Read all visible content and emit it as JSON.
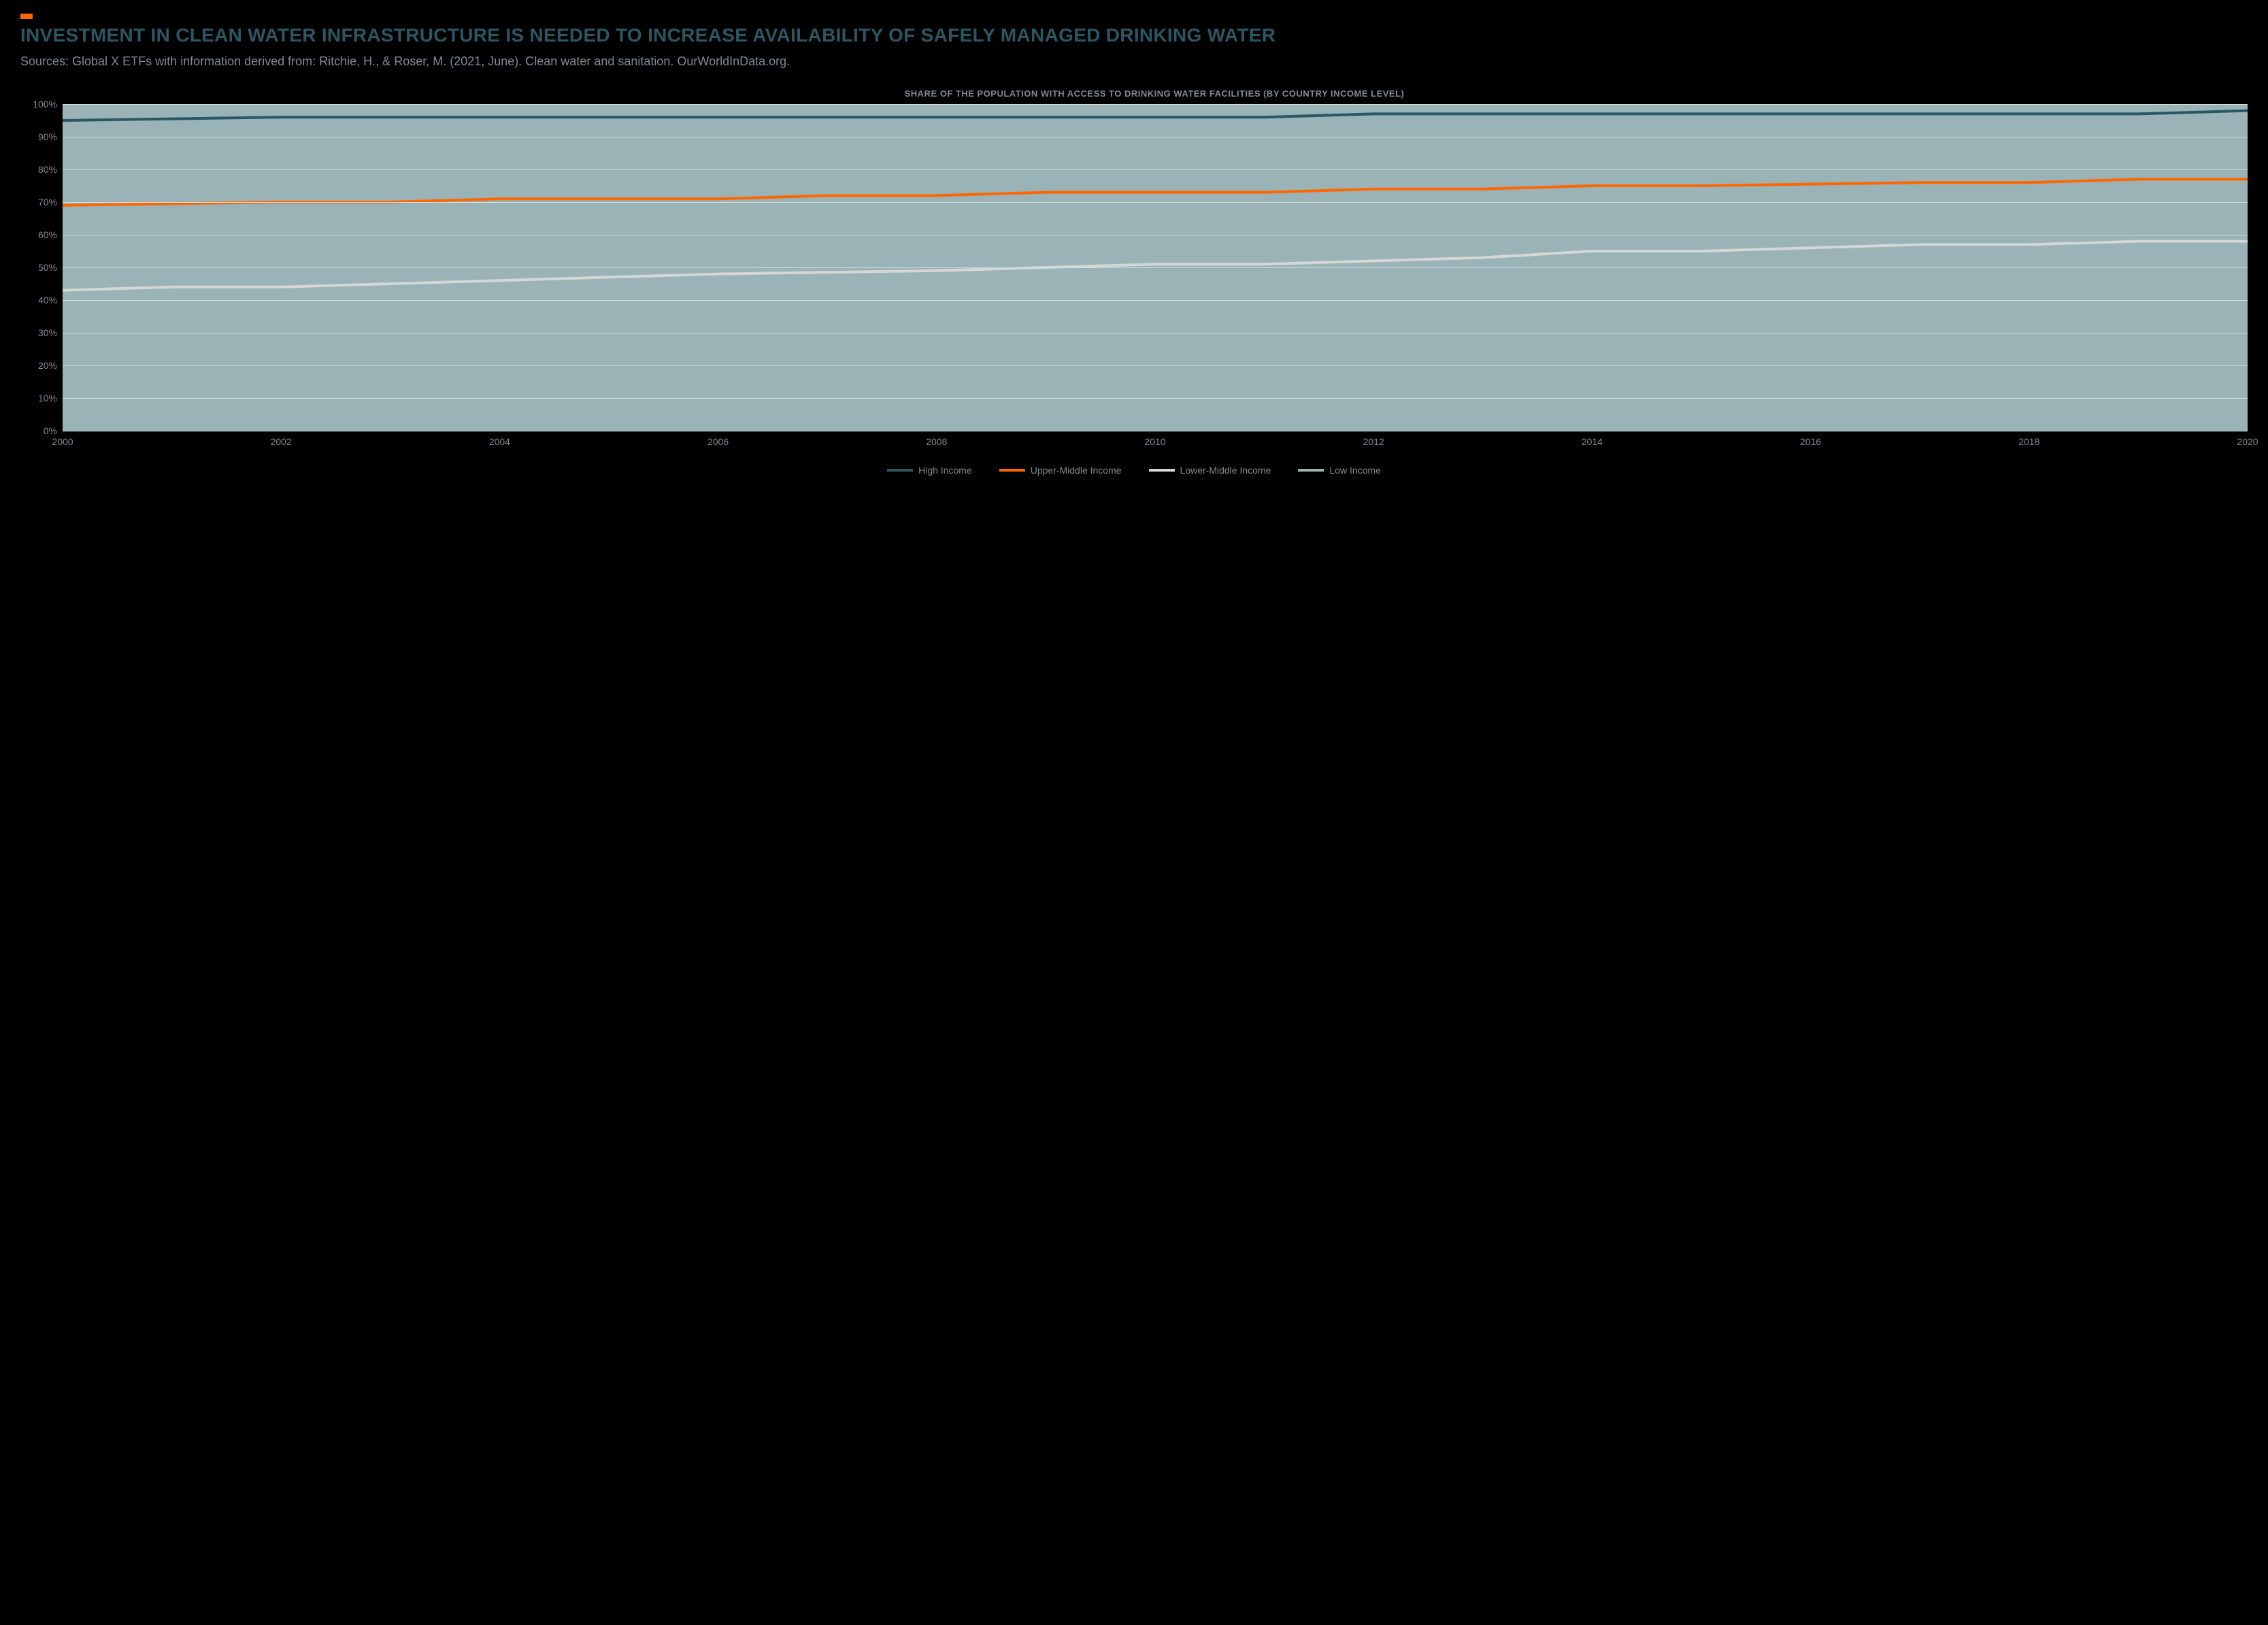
{
  "accent_color": "#ff6600",
  "title": "INVESTMENT IN CLEAN WATER INFRASTRUCTURE IS NEEDED TO INCREASE AVAILABILITY OF SAFELY MANAGED DRINKING WATER",
  "title_color": "#2b5763",
  "title_fontsize": 28,
  "sources": "Sources: Global X ETFs with information derived from: Ritchie, H., & Roser, M. (2021, June). Clean water and sanitation. OurWorldInData.org.",
  "sources_color": "#808a90",
  "chart": {
    "type": "line",
    "subtitle": "SHARE OF THE POPULATION WITH ACCESS TO DRINKING WATER FACILITIES (BY COUNTRY INCOME LEVEL)",
    "subtitle_color": "#808a90",
    "subtitle_fontsize": 13,
    "plot_background": "#99b3b6",
    "grid_color": "#d0dcdc",
    "axis_label_color": "#808a90",
    "axis_fontsize": 14,
    "line_width": 4,
    "y": {
      "min": 0,
      "max": 100,
      "step": 10,
      "suffix": "%",
      "ticks": [
        0,
        10,
        20,
        30,
        40,
        50,
        60,
        70,
        80,
        90,
        100
      ]
    },
    "x": {
      "min": 2000,
      "max": 2020,
      "ticks": [
        2000,
        2002,
        2004,
        2006,
        2008,
        2010,
        2012,
        2014,
        2016,
        2018,
        2020
      ],
      "years": [
        2000,
        2001,
        2002,
        2003,
        2004,
        2005,
        2006,
        2007,
        2008,
        2009,
        2010,
        2011,
        2012,
        2013,
        2014,
        2015,
        2016,
        2017,
        2018,
        2019,
        2020
      ]
    },
    "series": [
      {
        "key": "high",
        "label": "High Income",
        "color": "#2b5763",
        "values": [
          95,
          95.5,
          96,
          96,
          96,
          96,
          96,
          96,
          96,
          96,
          96,
          96,
          97,
          97,
          97,
          97,
          97,
          97,
          97,
          97,
          98
        ]
      },
      {
        "key": "upper_middle",
        "label": "Upper-Middle Income",
        "color": "#ff6600",
        "values": [
          69,
          69.5,
          70,
          70,
          71,
          71,
          71,
          72,
          72,
          73,
          73,
          73,
          74,
          74,
          75,
          75,
          75.5,
          76,
          76,
          77,
          77
        ]
      },
      {
        "key": "lower_middle",
        "label": "Lower-Middle Income",
        "color": "#d6d6d6",
        "values": [
          43,
          44,
          44,
          45,
          46,
          47,
          48,
          48.5,
          49,
          50,
          51,
          51,
          52,
          53,
          55,
          55,
          56,
          57,
          57,
          58,
          58
        ]
      },
      {
        "key": "low",
        "label": "Low Income",
        "color": "#99b3b6",
        "values": []
      }
    ],
    "legend": {
      "position": "bottom",
      "label_color": "#808a90",
      "fontsize": 14,
      "swatch_width": 38,
      "swatch_height": 4
    }
  }
}
